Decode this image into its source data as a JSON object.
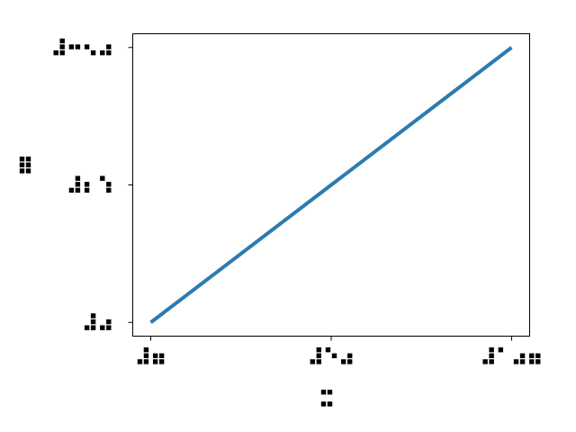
{
  "chart_data": {
    "type": "line",
    "title": "",
    "xlabel_glyph": "braille-xlabel",
    "ylabel_glyph": "braille-ylabel",
    "x": [
      0,
      2,
      4
    ],
    "series": [
      {
        "values": [
          0,
          2,
          4
        ],
        "color": "#2b7bb0"
      }
    ],
    "xlim": [
      -0.2,
      4.2
    ],
    "ylim": [
      -0.2,
      4.2
    ],
    "x_ticks": [
      {
        "value": 0,
        "glyph": "braille-x-tick-1"
      },
      {
        "value": 2,
        "glyph": "braille-x-tick-2"
      },
      {
        "value": 4,
        "glyph": "braille-x-tick-3"
      }
    ],
    "y_ticks": [
      {
        "value": 0,
        "glyph": "braille-y-tick-1"
      },
      {
        "value": 2,
        "glyph": "braille-y-tick-2"
      },
      {
        "value": 4,
        "glyph": "braille-y-tick-3"
      }
    ],
    "grid": false,
    "tick_label_style": "braille-like dot glyphs",
    "line_color": "#2b7bb0"
  }
}
